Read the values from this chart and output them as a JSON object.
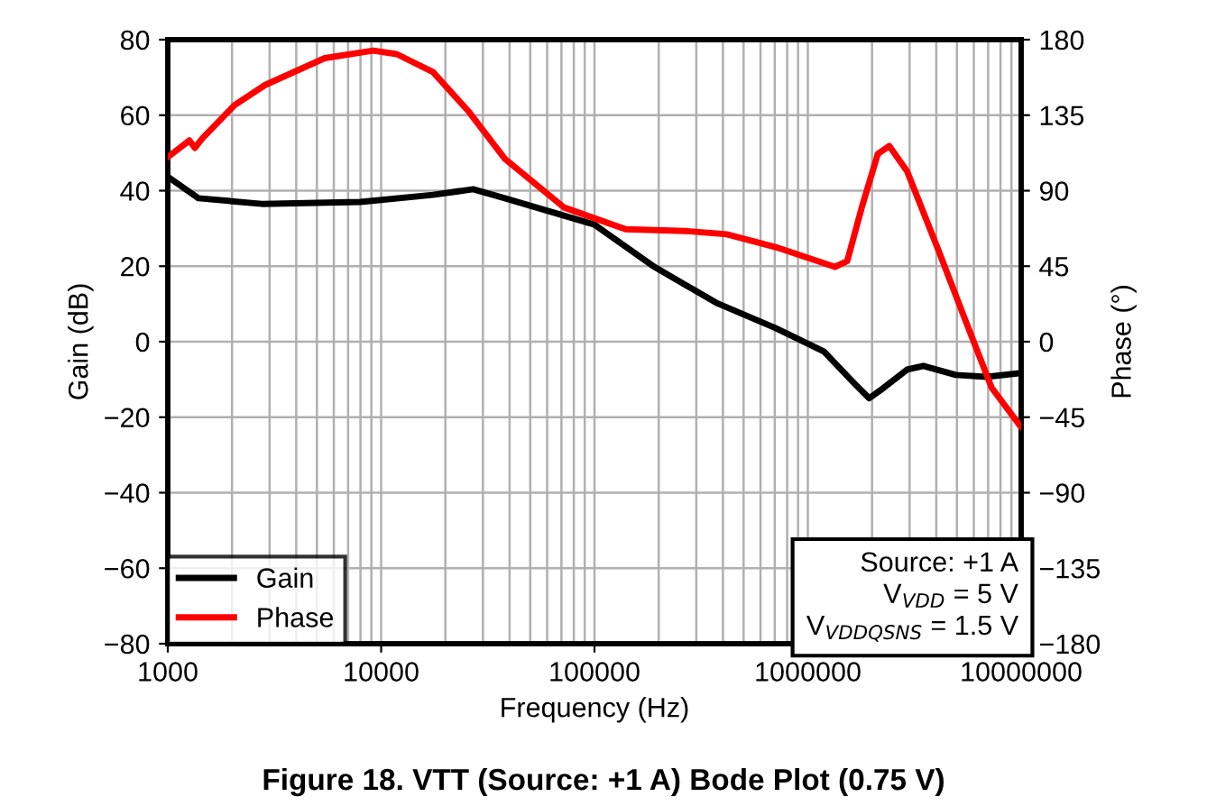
{
  "chart_data": {
    "type": "line",
    "title": "Figure 18. VTT (Source: +1 A) Bode Plot (0.75 V)",
    "xlabel": "Frequency (Hz)",
    "ylabel": "Gain (dB)",
    "y2label": "Phase (°)",
    "log": "x",
    "grid": true,
    "legend": "bottom left",
    "line_style": "solid",
    "marker": "none",
    "xlim": [
      1000,
      10000000
    ],
    "xticks": [
      1000,
      10000,
      100000,
      1000000,
      10000000
    ],
    "ylim": [
      -80,
      80
    ],
    "yticks": [
      -80,
      -60,
      -40,
      -20,
      0,
      20,
      40,
      60,
      80
    ],
    "y2lim": [
      -180,
      180
    ],
    "y2ticks": [
      -180,
      -135,
      -90,
      -45,
      0,
      45,
      90,
      135,
      180
    ],
    "annotations": [
      "Source: +1 A",
      "V$_{VDD}$ = 5 V",
      "V$_{VDDQSNS}$ = 1.5 V"
    ],
    "series": [
      {
        "name": "Gain",
        "color": "#000000",
        "x": [
          1000,
          1392,
          2755,
          8000,
          17500,
          27000,
          38000,
          100000,
          191000,
          372000,
          706000,
          1190000,
          1630000,
          1940000,
          2270000,
          2920000,
          3480000,
          4940000,
          6900000,
          10000000
        ],
        "values": [
          43.7,
          38,
          36.5,
          37,
          38.9,
          40.4,
          38,
          31,
          19.8,
          10.3,
          3.6,
          -2.6,
          -10.7,
          -15,
          -12.2,
          -7.4,
          -6.4,
          -8.8,
          -9.3,
          -8.3
        ]
      },
      {
        "name": "Phase",
        "color": "#ff0000",
        "axis": "y2",
        "x": [
          1000,
          1263,
          1339,
          1447,
          2056,
          2860,
          5440,
          9180,
          11830,
          17500,
          25800,
          38000,
          72000,
          140000,
          266000,
          417000,
          706000,
          1340000,
          1530000,
          1790000,
          2130000,
          2410000,
          2920000,
          4070000,
          5660000,
          7270000,
          10000000
        ],
        "values": [
          110,
          120,
          115.5,
          121,
          141,
          153,
          169,
          173.5,
          171.4,
          160.7,
          137,
          109,
          80,
          67,
          66,
          64,
          56.4,
          44.6,
          48,
          80,
          112,
          116.6,
          101.6,
          55.3,
          8,
          -27.4,
          -51
        ]
      }
    ]
  }
}
